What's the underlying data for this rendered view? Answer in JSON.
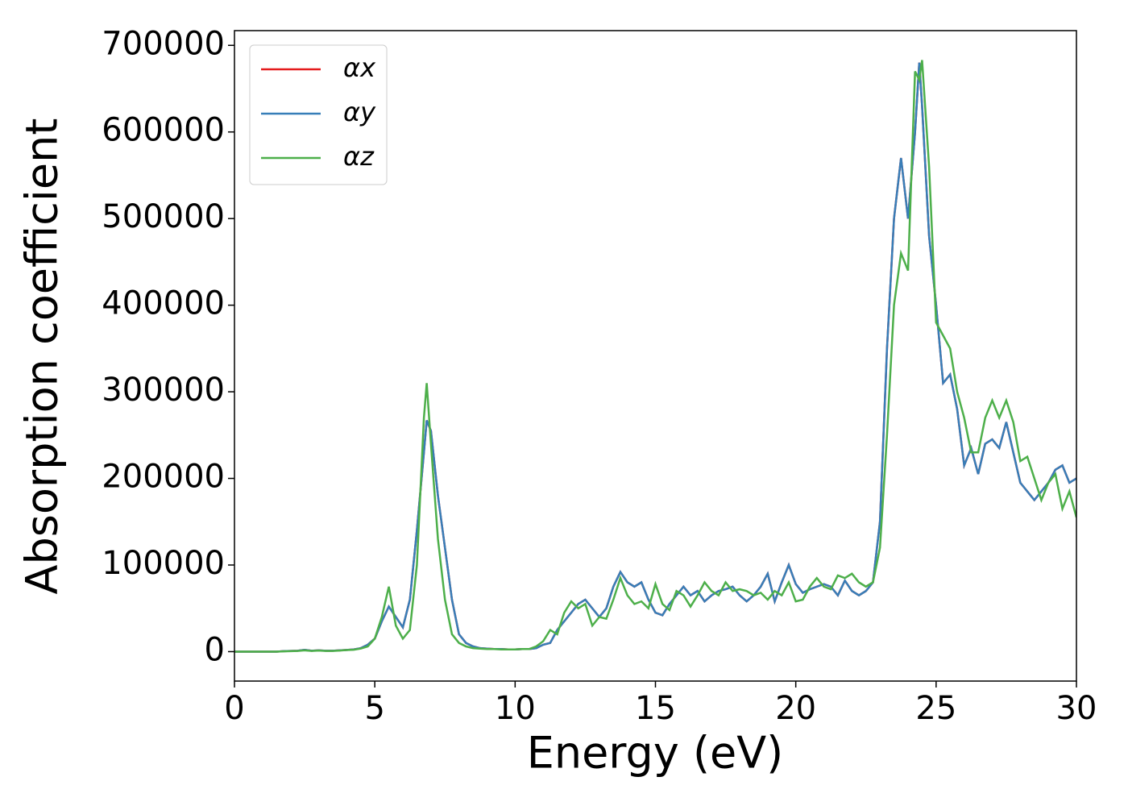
{
  "chart_data": {
    "type": "line",
    "xlabel": "Energy (eV)",
    "ylabel": "Absorption coefficient",
    "xlim": [
      0,
      30
    ],
    "xticks": [
      0,
      5,
      10,
      15,
      20,
      25,
      30
    ],
    "ylim": [
      -34000,
      717000
    ],
    "yticks": [
      0,
      100000,
      200000,
      300000,
      400000,
      500000,
      600000,
      700000
    ],
    "grid": false,
    "legend": "upper left",
    "x": [
      0,
      0.25,
      0.5,
      0.75,
      1,
      1.25,
      1.5,
      1.75,
      2,
      2.25,
      2.5,
      2.75,
      3,
      3.25,
      3.5,
      3.75,
      4,
      4.25,
      4.5,
      4.75,
      5,
      5.25,
      5.5,
      5.75,
      6,
      6.25,
      6.5,
      6.75,
      6.85,
      7,
      7.25,
      7.5,
      7.75,
      8,
      8.25,
      8.5,
      8.75,
      9,
      9.25,
      9.5,
      9.75,
      10,
      10.25,
      10.5,
      10.75,
      11,
      11.25,
      11.5,
      11.75,
      12,
      12.25,
      12.5,
      12.75,
      13,
      13.25,
      13.5,
      13.75,
      14,
      14.25,
      14.5,
      14.75,
      15,
      15.25,
      15.5,
      15.75,
      16,
      16.25,
      16.5,
      16.75,
      17,
      17.25,
      17.5,
      17.75,
      18,
      18.25,
      18.5,
      18.75,
      19,
      19.25,
      19.5,
      19.75,
      20,
      20.25,
      20.5,
      20.75,
      21,
      21.25,
      21.5,
      21.75,
      22,
      22.25,
      22.5,
      22.75,
      23,
      23.25,
      23.5,
      23.75,
      24,
      24.25,
      24.4,
      24.5,
      24.75,
      25,
      25.25,
      25.5,
      25.75,
      26,
      26.25,
      26.5,
      26.75,
      27,
      27.25,
      27.5,
      27.75,
      28,
      28.25,
      28.5,
      28.75,
      29,
      29.25,
      29.5,
      29.75,
      30
    ],
    "series": [
      {
        "name": "αx",
        "color": "#e41a1c",
        "values": [
          0,
          0,
          0,
          0,
          0,
          0,
          0,
          500,
          800,
          1000,
          2000,
          1000,
          1500,
          1000,
          1000,
          1500,
          2000,
          2500,
          4000,
          8000,
          15000,
          35000,
          52000,
          40000,
          28000,
          60000,
          140000,
          230000,
          267000,
          255000,
          180000,
          120000,
          60000,
          20000,
          10000,
          6000,
          4000,
          3500,
          3000,
          3000,
          2500,
          2500,
          3000,
          3000,
          4000,
          8000,
          10000,
          25000,
          35000,
          45000,
          55000,
          60000,
          50000,
          40000,
          50000,
          75000,
          92000,
          80000,
          75000,
          80000,
          60000,
          45000,
          42000,
          55000,
          65000,
          75000,
          65000,
          70000,
          58000,
          65000,
          70000,
          72000,
          75000,
          65000,
          58000,
          65000,
          75000,
          90000,
          58000,
          80000,
          100000,
          78000,
          68000,
          72000,
          75000,
          78000,
          75000,
          65000,
          82000,
          70000,
          65000,
          70000,
          80000,
          150000,
          350000,
          500000,
          570000,
          500000,
          600000,
          680000,
          630000,
          480000,
          400000,
          310000,
          320000,
          280000,
          215000,
          235000,
          205000,
          240000,
          245000,
          235000,
          265000,
          230000,
          195000,
          185000,
          175000,
          185000,
          195000,
          210000,
          215000,
          195000,
          200000
        ]
      },
      {
        "name": "αy",
        "color": "#377eb8",
        "values": [
          0,
          0,
          0,
          0,
          0,
          0,
          0,
          500,
          800,
          1000,
          2000,
          1000,
          1500,
          1000,
          1000,
          1500,
          2000,
          2500,
          4000,
          8000,
          15000,
          35000,
          52000,
          40000,
          28000,
          60000,
          140000,
          230000,
          267000,
          255000,
          180000,
          120000,
          60000,
          20000,
          10000,
          6000,
          4000,
          3500,
          3000,
          3000,
          2500,
          2500,
          3000,
          3000,
          4000,
          8000,
          10000,
          25000,
          35000,
          45000,
          55000,
          60000,
          50000,
          40000,
          50000,
          75000,
          92000,
          80000,
          75000,
          80000,
          60000,
          45000,
          42000,
          55000,
          65000,
          75000,
          65000,
          70000,
          58000,
          65000,
          70000,
          72000,
          75000,
          65000,
          58000,
          65000,
          75000,
          90000,
          58000,
          80000,
          100000,
          78000,
          68000,
          72000,
          75000,
          78000,
          75000,
          65000,
          82000,
          70000,
          65000,
          70000,
          80000,
          150000,
          350000,
          500000,
          570000,
          500000,
          600000,
          680000,
          630000,
          480000,
          400000,
          310000,
          320000,
          280000,
          215000,
          235000,
          205000,
          240000,
          245000,
          235000,
          265000,
          230000,
          195000,
          185000,
          175000,
          185000,
          195000,
          210000,
          215000,
          195000,
          200000
        ]
      },
      {
        "name": "αz",
        "color": "#4daf4a",
        "values": [
          0,
          0,
          0,
          0,
          0,
          0,
          0,
          300,
          600,
          800,
          1500,
          800,
          1200,
          800,
          800,
          1200,
          1800,
          2200,
          3500,
          6000,
          15000,
          40000,
          75000,
          30000,
          15000,
          25000,
          100000,
          270000,
          310000,
          240000,
          130000,
          60000,
          20000,
          10000,
          6000,
          4000,
          3500,
          3000,
          3000,
          2500,
          2500,
          2500,
          3000,
          3000,
          6000,
          12000,
          25000,
          20000,
          45000,
          58000,
          50000,
          55000,
          30000,
          40000,
          38000,
          60000,
          85000,
          65000,
          55000,
          58000,
          50000,
          78000,
          55000,
          48000,
          70000,
          65000,
          52000,
          65000,
          80000,
          70000,
          65000,
          80000,
          70000,
          72000,
          70000,
          65000,
          68000,
          60000,
          70000,
          65000,
          80000,
          58000,
          60000,
          75000,
          85000,
          75000,
          72000,
          88000,
          85000,
          90000,
          80000,
          75000,
          80000,
          120000,
          250000,
          400000,
          460000,
          440000,
          670000,
          660000,
          683000,
          560000,
          380000,
          365000,
          350000,
          300000,
          270000,
          230000,
          230000,
          270000,
          290000,
          270000,
          290000,
          265000,
          220000,
          225000,
          200000,
          175000,
          195000,
          205000,
          165000,
          185000,
          155000
        ]
      }
    ]
  }
}
